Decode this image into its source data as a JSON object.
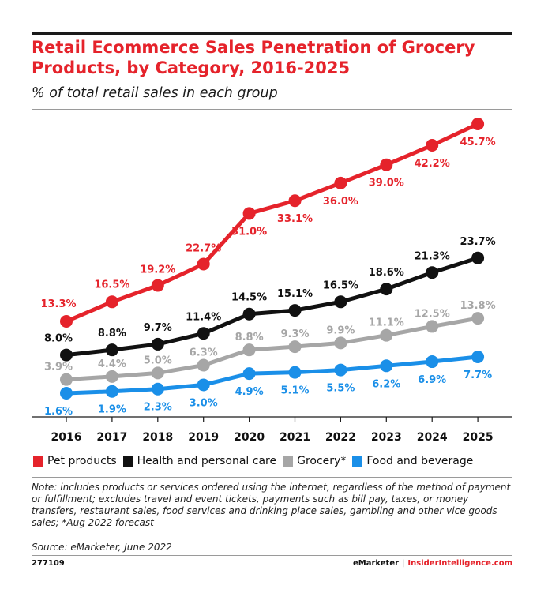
{
  "header": {
    "title": "Retail Ecommerce Sales Penetration of Grocery Products, by Category, 2016-2025",
    "subtitle": "% of total retail sales in each group"
  },
  "chart_data": {
    "type": "line",
    "title": "Retail Ecommerce Sales Penetration of Grocery Products, by Category, 2016-2025",
    "subtitle": "% of total retail sales in each group",
    "x": [
      "2016",
      "2017",
      "2018",
      "2019",
      "2020",
      "2021",
      "2022",
      "2023",
      "2024",
      "2025"
    ],
    "grid": false,
    "legend_position": "bottom",
    "series": [
      {
        "name": "Pet products",
        "color": "#e5232b",
        "values": [
          13.3,
          16.5,
          19.2,
          22.7,
          31.0,
          33.1,
          36.0,
          39.0,
          42.2,
          45.7
        ],
        "labels": [
          "13.3%",
          "16.5%",
          "19.2%",
          "22.7%",
          "31.0%",
          "33.1%",
          "36.0%",
          "39.0%",
          "42.2%",
          "45.7%"
        ]
      },
      {
        "name": "Health and personal care",
        "color": "#111111",
        "values": [
          8.0,
          8.8,
          9.7,
          11.4,
          14.5,
          15.1,
          16.5,
          18.6,
          21.3,
          23.7
        ],
        "labels": [
          "8.0%",
          "8.8%",
          "9.7%",
          "11.4%",
          "14.5%",
          "15.1%",
          "16.5%",
          "18.6%",
          "21.3%",
          "23.7%"
        ]
      },
      {
        "name": "Grocery*",
        "color": "#a6a6a6",
        "values": [
          3.9,
          4.4,
          5.0,
          6.3,
          8.8,
          9.3,
          9.9,
          11.1,
          12.5,
          13.8
        ],
        "labels": [
          "3.9%",
          "4.4%",
          "5.0%",
          "6.3%",
          "8.8%",
          "9.3%",
          "9.9%",
          "11.1%",
          "12.5%",
          "13.8%"
        ]
      },
      {
        "name": "Food and beverage",
        "color": "#1a8fe8",
        "values": [
          1.6,
          1.9,
          2.3,
          3.0,
          4.9,
          5.1,
          5.5,
          6.2,
          6.9,
          7.7
        ],
        "labels": [
          "1.6%",
          "1.9%",
          "2.3%",
          "3.0%",
          "4.9%",
          "5.1%",
          "5.5%",
          "6.2%",
          "6.9%",
          "7.7%"
        ]
      }
    ]
  },
  "footer": {
    "note": "Note: includes products or services ordered using the internet, regardless of the method of payment or fulfillment; excludes travel and event tickets, payments such as bill pay, taxes, or money transfers, restaurant sales, food services and drinking place sales, gambling and other vice goods sales; *Aug 2022 forecast",
    "source": "Source: eMarketer, June 2022",
    "chart_id": "277109",
    "brand_left": "eMarketer",
    "brand_sep": "|",
    "brand_right": "InsiderIntelligence.com"
  }
}
